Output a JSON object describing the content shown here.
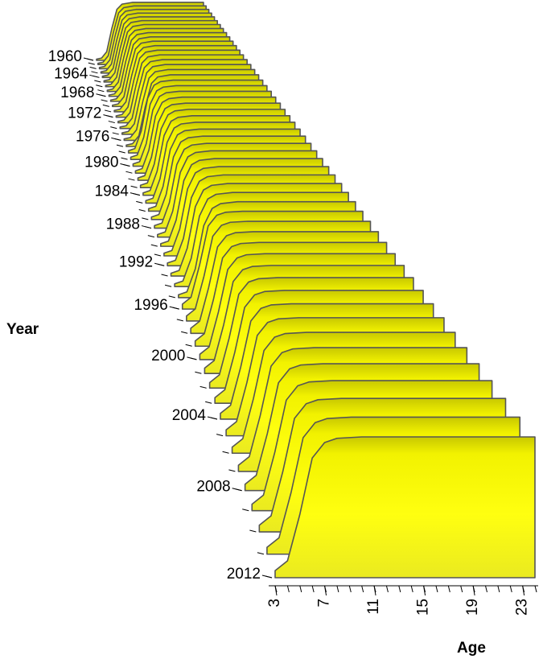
{
  "chart_data": {
    "type": "waterfall3d",
    "xlabel": "Age",
    "ylabel": "Year",
    "x": [
      3,
      4,
      5,
      6,
      7,
      8,
      10,
      24
    ],
    "xlim": [
      3,
      24
    ],
    "xticks": [
      3,
      7,
      11,
      15,
      19,
      23
    ],
    "xminorticks": [
      3,
      4,
      5,
      6,
      7,
      8,
      9,
      10,
      11,
      12,
      13,
      14,
      15,
      16,
      17,
      18,
      19,
      20,
      21,
      22,
      23,
      24
    ],
    "zlim": [
      0,
      1
    ],
    "color": "#ffff00",
    "years": [
      1960,
      1961,
      1962,
      1963,
      1964,
      1965,
      1966,
      1967,
      1968,
      1969,
      1970,
      1971,
      1972,
      1973,
      1974,
      1975,
      1976,
      1977,
      1978,
      1979,
      1980,
      1981,
      1982,
      1983,
      1984,
      1985,
      1986,
      1987,
      1988,
      1989,
      1990,
      1991,
      1992,
      1993,
      1994,
      1995,
      1996,
      1997,
      1998,
      1999,
      2000,
      2001,
      2002,
      2003,
      2004,
      2005,
      2006,
      2007,
      2008,
      2009,
      2010,
      2011,
      2012
    ],
    "yticks": [
      1960,
      1964,
      1968,
      1972,
      1976,
      1980,
      1984,
      1988,
      1992,
      1996,
      2000,
      2004,
      2008,
      2012
    ],
    "series": [
      {
        "values": [
          0.02,
          0.04,
          0.15,
          0.55,
          0.88,
          0.97,
          1,
          1
        ]
      },
      {
        "values": [
          0.02,
          0.04,
          0.15,
          0.55,
          0.88,
          0.97,
          1,
          1
        ]
      },
      {
        "values": [
          0.02,
          0.04,
          0.15,
          0.55,
          0.88,
          0.97,
          1,
          1
        ]
      },
      {
        "values": [
          0.02,
          0.04,
          0.15,
          0.55,
          0.88,
          0.97,
          1,
          1
        ]
      },
      {
        "values": [
          0.02,
          0.04,
          0.15,
          0.55,
          0.88,
          0.97,
          1,
          1
        ]
      },
      {
        "values": [
          0.02,
          0.04,
          0.15,
          0.55,
          0.88,
          0.97,
          1,
          1
        ]
      },
      {
        "values": [
          0.02,
          0.04,
          0.15,
          0.55,
          0.88,
          0.97,
          1,
          1
        ]
      },
      {
        "values": [
          0.02,
          0.04,
          0.15,
          0.55,
          0.88,
          0.97,
          1,
          1
        ]
      },
      {
        "values": [
          0.02,
          0.04,
          0.15,
          0.55,
          0.88,
          0.97,
          1,
          1
        ]
      },
      {
        "values": [
          0.02,
          0.04,
          0.15,
          0.55,
          0.88,
          0.97,
          1,
          1
        ]
      },
      {
        "values": [
          0.02,
          0.04,
          0.15,
          0.55,
          0.88,
          0.97,
          1,
          1
        ]
      },
      {
        "values": [
          0.02,
          0.04,
          0.15,
          0.55,
          0.88,
          0.97,
          1,
          1
        ]
      },
      {
        "values": [
          0.02,
          0.04,
          0.15,
          0.55,
          0.88,
          0.97,
          1,
          1
        ]
      },
      {
        "values": [
          0.02,
          0.04,
          0.15,
          0.55,
          0.88,
          0.97,
          1,
          1
        ]
      },
      {
        "values": [
          0.02,
          0.04,
          0.15,
          0.55,
          0.88,
          0.97,
          1,
          1
        ]
      },
      {
        "values": [
          0.02,
          0.04,
          0.15,
          0.55,
          0.88,
          0.97,
          1,
          1
        ]
      },
      {
        "values": [
          0.02,
          0.04,
          0.15,
          0.55,
          0.88,
          0.97,
          1,
          1
        ]
      },
      {
        "values": [
          0.02,
          0.04,
          0.15,
          0.55,
          0.88,
          0.97,
          1,
          1
        ]
      },
      {
        "values": [
          0.03,
          0.06,
          0.3,
          0.75,
          0.93,
          0.98,
          1,
          1
        ]
      },
      {
        "values": [
          0.03,
          0.06,
          0.3,
          0.75,
          0.93,
          0.98,
          1,
          1
        ]
      },
      {
        "values": [
          0.03,
          0.06,
          0.3,
          0.75,
          0.93,
          0.98,
          1,
          1
        ]
      },
      {
        "values": [
          0.03,
          0.06,
          0.3,
          0.75,
          0.93,
          0.98,
          1,
          1
        ]
      },
      {
        "values": [
          0.03,
          0.06,
          0.3,
          0.75,
          0.93,
          0.98,
          1,
          1
        ]
      },
      {
        "values": [
          0.03,
          0.06,
          0.3,
          0.75,
          0.93,
          0.98,
          1,
          1
        ]
      },
      {
        "values": [
          0.03,
          0.06,
          0.3,
          0.75,
          0.93,
          0.98,
          1,
          1
        ]
      },
      {
        "values": [
          0.03,
          0.06,
          0.3,
          0.75,
          0.93,
          0.98,
          1,
          1
        ]
      },
      {
        "values": [
          0.03,
          0.06,
          0.3,
          0.75,
          0.93,
          0.98,
          1,
          1
        ]
      },
      {
        "values": [
          0.03,
          0.06,
          0.3,
          0.75,
          0.93,
          0.98,
          1,
          1
        ]
      },
      {
        "values": [
          0.03,
          0.06,
          0.3,
          0.75,
          0.93,
          0.98,
          1,
          1
        ]
      },
      {
        "values": [
          0.03,
          0.06,
          0.3,
          0.75,
          0.93,
          0.98,
          1,
          1
        ]
      },
      {
        "values": [
          0.03,
          0.06,
          0.3,
          0.75,
          0.93,
          0.98,
          1,
          1
        ]
      },
      {
        "values": [
          0.03,
          0.06,
          0.3,
          0.75,
          0.93,
          0.98,
          1,
          1
        ]
      },
      {
        "values": [
          0.03,
          0.06,
          0.3,
          0.75,
          0.93,
          0.98,
          1,
          1
        ]
      },
      {
        "values": [
          0.03,
          0.06,
          0.3,
          0.75,
          0.93,
          0.98,
          1,
          1
        ]
      },
      {
        "values": [
          0.03,
          0.06,
          0.3,
          0.75,
          0.93,
          0.98,
          1,
          1
        ]
      },
      {
        "values": [
          0.03,
          0.06,
          0.3,
          0.75,
          0.93,
          0.98,
          1,
          1
        ]
      },
      {
        "values": [
          0.05,
          0.12,
          0.45,
          0.85,
          0.96,
          0.99,
          1,
          1
        ]
      },
      {
        "values": [
          0.05,
          0.12,
          0.45,
          0.85,
          0.96,
          0.99,
          1,
          1
        ]
      },
      {
        "values": [
          0.05,
          0.12,
          0.45,
          0.85,
          0.96,
          0.99,
          1,
          1
        ]
      },
      {
        "values": [
          0.05,
          0.12,
          0.45,
          0.85,
          0.96,
          0.99,
          1,
          1
        ]
      },
      {
        "values": [
          0.05,
          0.12,
          0.45,
          0.85,
          0.96,
          0.99,
          1,
          1
        ]
      },
      {
        "values": [
          0.05,
          0.12,
          0.45,
          0.85,
          0.96,
          0.99,
          1,
          1
        ]
      },
      {
        "values": [
          0.05,
          0.12,
          0.45,
          0.85,
          0.96,
          0.99,
          1,
          1
        ]
      },
      {
        "values": [
          0.05,
          0.12,
          0.45,
          0.85,
          0.96,
          0.99,
          1,
          1
        ]
      },
      {
        "values": [
          0.05,
          0.12,
          0.45,
          0.85,
          0.96,
          0.99,
          1,
          1
        ]
      },
      {
        "values": [
          0.05,
          0.12,
          0.45,
          0.85,
          0.96,
          0.99,
          1,
          1
        ]
      },
      {
        "values": [
          0.05,
          0.12,
          0.45,
          0.85,
          0.96,
          0.99,
          1,
          1
        ]
      },
      {
        "values": [
          0.05,
          0.12,
          0.45,
          0.85,
          0.96,
          0.99,
          1,
          1
        ]
      },
      {
        "values": [
          0.05,
          0.12,
          0.45,
          0.85,
          0.96,
          0.99,
          1,
          1
        ]
      },
      {
        "values": [
          0.05,
          0.12,
          0.45,
          0.85,
          0.96,
          0.99,
          1,
          1
        ]
      },
      {
        "values": [
          0.05,
          0.12,
          0.45,
          0.85,
          0.96,
          0.99,
          1,
          1
        ]
      },
      {
        "values": [
          0.05,
          0.12,
          0.45,
          0.85,
          0.96,
          0.99,
          1,
          1
        ]
      },
      {
        "values": [
          0.05,
          0.12,
          0.45,
          0.85,
          0.96,
          0.99,
          1,
          1
        ]
      }
    ]
  }
}
